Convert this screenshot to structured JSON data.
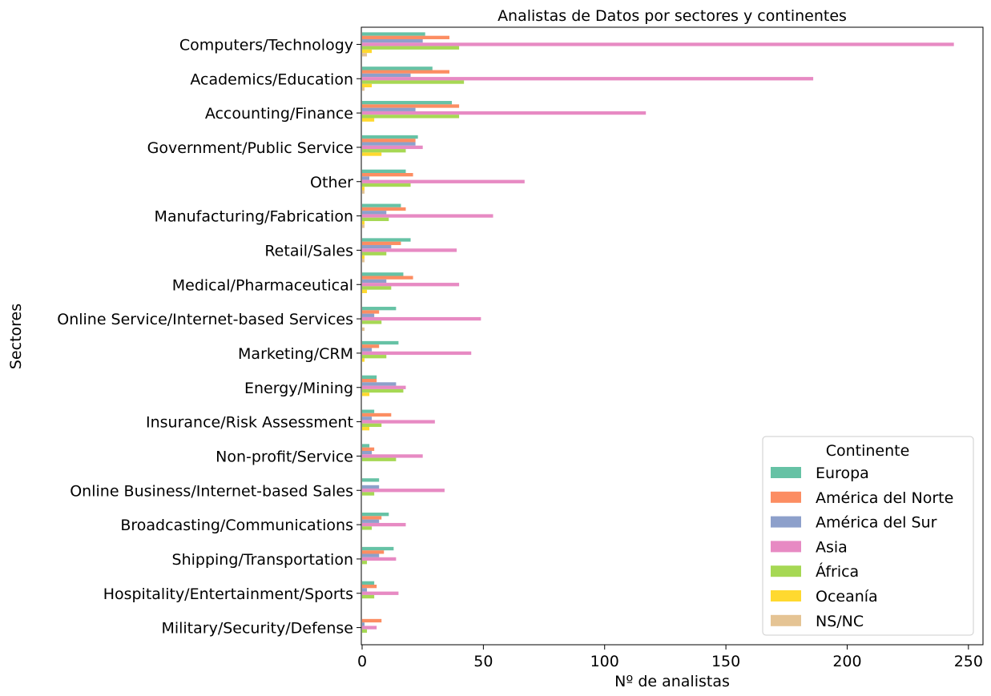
{
  "chart_data": {
    "type": "bar",
    "orientation": "horizontal",
    "title": "Analistas de Datos por sectores y continentes",
    "xlabel": "Nº de analistas",
    "ylabel": "Sectores",
    "xlim": [
      0,
      256
    ],
    "xticks": [
      0,
      50,
      100,
      150,
      200,
      250
    ],
    "grid": false,
    "legend": {
      "title": "Continente",
      "placement": "lower-right"
    },
    "categories": [
      "Computers/Technology",
      "Academics/Education",
      "Accounting/Finance",
      "Government/Public Service",
      "Other",
      "Manufacturing/Fabrication",
      "Retail/Sales",
      "Medical/Pharmaceutical",
      "Online Service/Internet-based Services",
      "Marketing/CRM",
      "Energy/Mining",
      "Insurance/Risk Assessment",
      "Non-profit/Service",
      "Online Business/Internet-based Sales",
      "Broadcasting/Communications",
      "Shipping/Transportation",
      "Hospitality/Entertainment/Sports",
      "Military/Security/Defense"
    ],
    "series": [
      {
        "name": "Europa",
        "color": "#66c2a5",
        "values": [
          26,
          29,
          37,
          23,
          18,
          16,
          20,
          17,
          14,
          15,
          6,
          5,
          3,
          7,
          11,
          13,
          5,
          0
        ]
      },
      {
        "name": "América del Norte",
        "color": "#fc8d62",
        "values": [
          36,
          36,
          40,
          22,
          21,
          18,
          16,
          21,
          7,
          7,
          6,
          12,
          5,
          0,
          8,
          9,
          6,
          8
        ]
      },
      {
        "name": "América del Sur",
        "color": "#8da0cb",
        "values": [
          25,
          20,
          22,
          22,
          3,
          10,
          12,
          10,
          5,
          4,
          14,
          4,
          4,
          7,
          7,
          7,
          2,
          1
        ]
      },
      {
        "name": "Asia",
        "color": "#e78ac3",
        "values": [
          244,
          186,
          117,
          25,
          67,
          54,
          39,
          40,
          49,
          45,
          18,
          30,
          25,
          34,
          18,
          14,
          15,
          6
        ]
      },
      {
        "name": "África",
        "color": "#a6d854",
        "values": [
          40,
          42,
          40,
          18,
          20,
          11,
          10,
          12,
          8,
          10,
          17,
          8,
          14,
          5,
          4,
          2,
          5,
          2
        ]
      },
      {
        "name": "Oceanía",
        "color": "#ffd92f",
        "values": [
          4,
          4,
          5,
          8,
          1,
          1,
          1,
          2,
          0,
          1,
          3,
          3,
          0,
          0,
          0,
          0,
          0,
          0
        ]
      },
      {
        "name": "NS/NC",
        "color": "#e5c494",
        "values": [
          2,
          1,
          0,
          0,
          1,
          1,
          1,
          0,
          1,
          0,
          0,
          0,
          0,
          0,
          0,
          0,
          0,
          0
        ]
      }
    ]
  }
}
